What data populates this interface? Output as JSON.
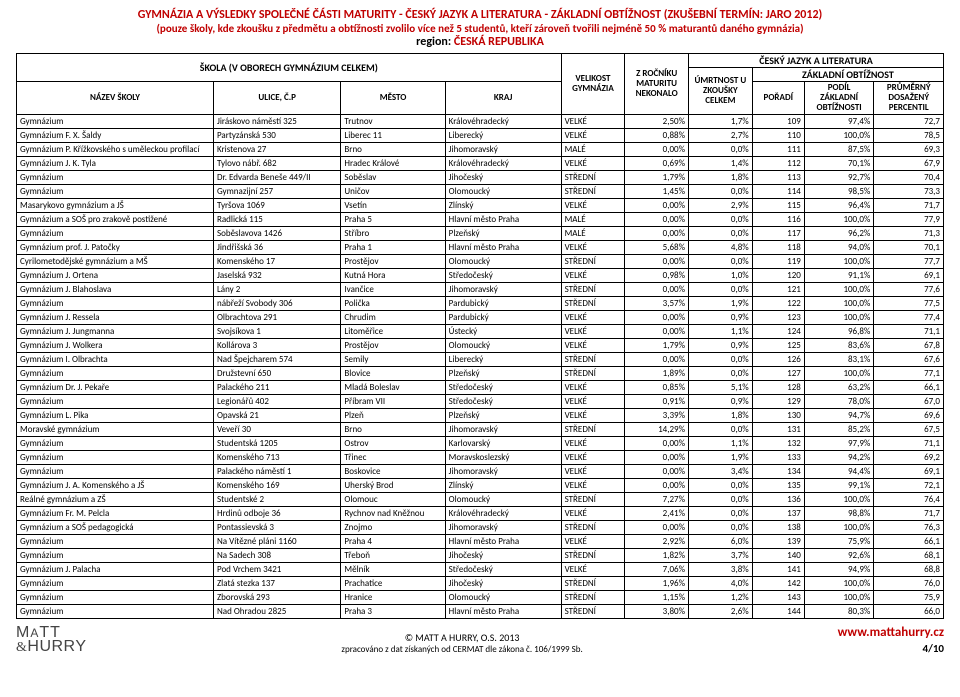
{
  "title": {
    "line1": "GYMNÁZIA A VÝSLEDKY SPOLEČNÉ ČÁSTI MATURITY - ČESKÝ JAZYK A LITERATURA - ZÁKLADNÍ OBTÍŽNOST  (ZKUŠEBNÍ TERMÍN: JARO 2012)",
    "line2": "(pouze školy, kde zkoušku z předmětu a obtížnosti zvolilo více než 5 studentů, kteří zároveň tvořili nejméně 50 % maturantů daného gymnázia)",
    "region_label": "region:",
    "region_value": "ČESKÁ REPUBLIKA"
  },
  "headers": {
    "school_group": "ŠKOLA (V OBORECH GYMNÁZIUM CELKEM)",
    "subject_group": "ČESKÝ JAZYK A LITERATURA",
    "difficulty_group": "ZÁKLADNÍ OBTÍŽNOST",
    "name": "NÁZEV ŠKOLY",
    "street": "ULICE, Č.P",
    "city": "MĚSTO",
    "region": "KRAJ",
    "size": "VELIKOST GYMNÁZIA",
    "pct_chose": "Z ROČNÍKU MATURITU NEKONALO",
    "mortality": "ÚMRTNOST U ZKOUŠKY CELKEM",
    "rank": "POŘADÍ",
    "share": "PODÍL ZÁKLADNÍ OBTÍŽNOSTI",
    "percentile": "PRŮMĚRNÝ DOSAŽENÝ PERCENTIL"
  },
  "col_widths": {
    "name": "170px",
    "street": "110px",
    "city": "90px",
    "region": "100px",
    "size": "55px",
    "pct_chose": "55px",
    "mortality": "55px",
    "rank": "45px",
    "share": "60px",
    "percentile": "60px"
  },
  "rows": [
    [
      "Gymnázium",
      "Jiráskovo náměstí 325",
      "Trutnov",
      "Královéhradecký",
      "VELKÉ",
      "2,50%",
      "1,7%",
      "109",
      "97,4%",
      "72,7"
    ],
    [
      "Gymnázium F. X. Šaldy",
      "Partyzánská 530",
      "Liberec 11",
      "Liberecký",
      "VELKÉ",
      "0,88%",
      "2,7%",
      "110",
      "100,0%",
      "78,5"
    ],
    [
      "Gymnázium P. Křížkovského s uměleckou profilací",
      "Kristenova 27",
      "Brno",
      "Jihomoravský",
      "MALÉ",
      "0,00%",
      "0,0%",
      "111",
      "87,5%",
      "69,3"
    ],
    [
      "Gymnázium J. K. Tyla",
      "Tylovo nábř. 682",
      "Hradec Králové",
      "Královéhradecký",
      "VELKÉ",
      "0,69%",
      "1,4%",
      "112",
      "70,1%",
      "67,9"
    ],
    [
      "Gymnázium",
      "Dr. Edvarda Beneše 449/II",
      "Soběslav",
      "Jihočeský",
      "STŘEDNÍ",
      "1,79%",
      "1,8%",
      "113",
      "92,7%",
      "70,4"
    ],
    [
      "Gymnázium",
      "Gymnazijní 257",
      "Uničov",
      "Olomoucký",
      "STŘEDNÍ",
      "1,45%",
      "0,0%",
      "114",
      "98,5%",
      "73,3"
    ],
    [
      "Masarykovo gymnázium a JŠ",
      "Tyršova 1069",
      "Vsetín",
      "Zlínský",
      "VELKÉ",
      "0,00%",
      "2,9%",
      "115",
      "96,4%",
      "71,7"
    ],
    [
      "Gymnázium a SOŠ pro zrakově postižené",
      "Radlická 115",
      "Praha 5",
      "Hlavní město Praha",
      "MALÉ",
      "0,00%",
      "0,0%",
      "116",
      "100,0%",
      "77,9"
    ],
    [
      "Gymnázium",
      "Soběslavova 1426",
      "Stříbro",
      "Plzeňský",
      "MALÉ",
      "0,00%",
      "0,0%",
      "117",
      "96,2%",
      "71,3"
    ],
    [
      "Gymnázium prof. J. Patočky",
      "Jindřišská 36",
      "Praha 1",
      "Hlavní město Praha",
      "VELKÉ",
      "5,68%",
      "4,8%",
      "118",
      "94,0%",
      "70,1"
    ],
    [
      "Cyrilometodějské gymnázium a MŠ",
      "Komenského 17",
      "Prostějov",
      "Olomoucký",
      "STŘEDNÍ",
      "0,00%",
      "0,0%",
      "119",
      "100,0%",
      "77,7"
    ],
    [
      "Gymnázium J. Ortena",
      "Jaselská 932",
      "Kutná Hora",
      "Středočeský",
      "VELKÉ",
      "0,98%",
      "1,0%",
      "120",
      "91,1%",
      "69,1"
    ],
    [
      "Gymnázium J. Blahoslava",
      "Lány 2",
      "Ivančice",
      "Jihomoravský",
      "STŘEDNÍ",
      "0,00%",
      "0,0%",
      "121",
      "100,0%",
      "77,6"
    ],
    [
      "Gymnázium",
      "nábřeží Svobody 306",
      "Polička",
      "Pardubický",
      "STŘEDNÍ",
      "3,57%",
      "1,9%",
      "122",
      "100,0%",
      "77,5"
    ],
    [
      "Gymnázium J. Ressela",
      "Olbrachtova 291",
      "Chrudim",
      "Pardubický",
      "VELKÉ",
      "0,00%",
      "0,9%",
      "123",
      "100,0%",
      "77,4"
    ],
    [
      "Gymnázium J. Jungmanna",
      "Svojsíkova 1",
      "Litoměřice",
      "Ústecký",
      "VELKÉ",
      "0,00%",
      "1,1%",
      "124",
      "96,8%",
      "71,1"
    ],
    [
      "Gymnázium J. Wolkera",
      "Kollárova 3",
      "Prostějov",
      "Olomoucký",
      "VELKÉ",
      "1,79%",
      "0,9%",
      "125",
      "83,6%",
      "67,8"
    ],
    [
      "Gymnázium I. Olbrachta",
      "Nad Špejcharem 574",
      "Semily",
      "Liberecký",
      "STŘEDNÍ",
      "0,00%",
      "0,0%",
      "126",
      "83,1%",
      "67,6"
    ],
    [
      "Gymnázium",
      "Družstevní 650",
      "Blovice",
      "Plzeňský",
      "STŘEDNÍ",
      "1,89%",
      "0,0%",
      "127",
      "100,0%",
      "77,1"
    ],
    [
      "Gymnázium Dr. J. Pekaře",
      "Palackého 211",
      "Mladá Boleslav",
      "Středočeský",
      "VELKÉ",
      "0,85%",
      "5,1%",
      "128",
      "63,2%",
      "66,1"
    ],
    [
      "Gymnázium",
      "Legionářů 402",
      "Příbram VII",
      "Středočeský",
      "VELKÉ",
      "0,91%",
      "0,9%",
      "129",
      "78,0%",
      "67,0"
    ],
    [
      "Gymnázium L. Pika",
      "Opavská 21",
      "Plzeň",
      "Plzeňský",
      "VELKÉ",
      "3,39%",
      "1,8%",
      "130",
      "94,7%",
      "69,6"
    ],
    [
      "Moravské gymnázium",
      "Veveří 30",
      "Brno",
      "Jihomoravský",
      "STŘEDNÍ",
      "14,29%",
      "0,0%",
      "131",
      "85,2%",
      "67,5"
    ],
    [
      "Gymnázium",
      "Studentská 1205",
      "Ostrov",
      "Karlovarský",
      "VELKÉ",
      "0,00%",
      "1,1%",
      "132",
      "97,9%",
      "71,1"
    ],
    [
      "Gymnázium",
      "Komenského 713",
      "Třinec",
      "Moravskoslezský",
      "VELKÉ",
      "0,00%",
      "1,9%",
      "133",
      "94,2%",
      "69,2"
    ],
    [
      "Gymnázium",
      "Palackého náměstí 1",
      "Boskovice",
      "Jihomoravský",
      "VELKÉ",
      "0,00%",
      "3,4%",
      "134",
      "94,4%",
      "69,1"
    ],
    [
      "Gymnázium J. A. Komenského a JŠ",
      "Komenského 169",
      "Uherský Brod",
      "Zlínský",
      "VELKÉ",
      "0,00%",
      "0,0%",
      "135",
      "99,1%",
      "72,1"
    ],
    [
      "Reálné gymnázium a ZŠ",
      "Studentské 2",
      "Olomouc",
      "Olomoucký",
      "STŘEDNÍ",
      "7,27%",
      "0,0%",
      "136",
      "100,0%",
      "76,4"
    ],
    [
      "Gymnázium Fr. M. Pelcla",
      "Hrdinů odboje 36",
      "Rychnov nad Kněžnou",
      "Královéhradecký",
      "VELKÉ",
      "2,41%",
      "0,0%",
      "137",
      "98,8%",
      "71,7"
    ],
    [
      "Gymnázium a SOŠ pedagogická",
      "Pontassievská 3",
      "Znojmo",
      "Jihomoravský",
      "STŘEDNÍ",
      "0,00%",
      "0,0%",
      "138",
      "100,0%",
      "76,3"
    ],
    [
      "Gymnázium",
      "Na Vítězné pláni 1160",
      "Praha 4",
      "Hlavní město Praha",
      "VELKÉ",
      "2,92%",
      "6,0%",
      "139",
      "75,9%",
      "66,1"
    ],
    [
      "Gymnázium",
      "Na Sadech 308",
      "Třeboň",
      "Jihočeský",
      "STŘEDNÍ",
      "1,82%",
      "3,7%",
      "140",
      "92,6%",
      "68,1"
    ],
    [
      "Gymnázium J. Palacha",
      "Pod Vrchem 3421",
      "Mělník",
      "Středočeský",
      "VELKÉ",
      "7,06%",
      "3,8%",
      "141",
      "94,9%",
      "68,8"
    ],
    [
      "Gymnázium",
      "Zlatá stezka 137",
      "Prachatice",
      "Jihočeský",
      "STŘEDNÍ",
      "1,96%",
      "4,0%",
      "142",
      "100,0%",
      "76,0"
    ],
    [
      "Gymnázium",
      "Zborovská 293",
      "Hranice",
      "Olomoucký",
      "STŘEDNÍ",
      "1,15%",
      "1,2%",
      "143",
      "100,0%",
      "75,9"
    ],
    [
      "Gymnázium",
      "Nad Ohradou 2825",
      "Praha 3",
      "Hlavní město Praha",
      "STŘEDNÍ",
      "3,80%",
      "2,6%",
      "144",
      "80,3%",
      "66,0"
    ]
  ],
  "footer": {
    "copyright": "© MATT A HURRY, O.S. 2013",
    "source": "zpracováno z dat získaných od CERMAT dle zákona č. 106/1999 Sb.",
    "url": "www.mattahurry.cz",
    "page": "4/10"
  }
}
